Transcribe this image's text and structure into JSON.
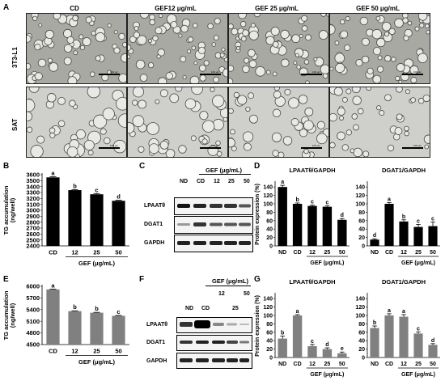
{
  "panels": {
    "A": "A",
    "B": "B",
    "C": "C",
    "D": "D",
    "E": "E",
    "F": "F",
    "G": "G"
  },
  "micrographs": {
    "columns": [
      "CD",
      "GEF12 μg/mL",
      "GEF 25 μg/mL",
      "GEF 50 μg/mL"
    ],
    "rows": [
      "3T3-L1",
      "SAT"
    ],
    "scale_label": "100 μm"
  },
  "blots": {
    "C": {
      "group_label": "GEF (μg/mL)",
      "lanes": [
        "ND",
        "CD",
        "12",
        "25",
        "50"
      ],
      "proteins": [
        "LPAATθ",
        "DGAT1",
        "GAPDH"
      ]
    },
    "F": {
      "group_label": "GEF (μg/mL)",
      "lanes": [
        "ND",
        "CD",
        "12",
        "25",
        "50"
      ],
      "proteins": [
        "LPAATθ",
        "DGAT1",
        "GAPDH"
      ]
    }
  },
  "chart_data": [
    {
      "panel": "B",
      "type": "bar",
      "title": "",
      "ylabel": "TG accumulation (ng/well)",
      "categories": [
        "CD",
        "12",
        "25",
        "50"
      ],
      "values": [
        3555,
        3340,
        3270,
        3160
      ],
      "errors": [
        12,
        10,
        12,
        10
      ],
      "letters": [
        "a",
        "b",
        "c",
        "d"
      ],
      "ylim": [
        2400,
        3600
      ],
      "yticks": [
        2400,
        2500,
        2600,
        2700,
        2800,
        2900,
        3000,
        3100,
        3200,
        3300,
        3400,
        3500,
        3600
      ],
      "xgroup": "GEF (μg/mL)",
      "color": "#000000"
    },
    {
      "panel": "D",
      "type": "bar",
      "title": "LPAATθ/GAPDH",
      "ylabel": "Protein expression (%)",
      "categories": [
        "ND",
        "CD",
        "12",
        "25",
        "50"
      ],
      "values": [
        140,
        100,
        95,
        93,
        62
      ],
      "errors": [
        4,
        2,
        2,
        2,
        3
      ],
      "letters": [
        "a",
        "b",
        "c",
        "c",
        "d"
      ],
      "ylim": [
        0,
        150
      ],
      "yticks": [
        0,
        20,
        40,
        60,
        80,
        100,
        120,
        140
      ],
      "xgroup": "GEF (μg/mL)",
      "color": "#000000"
    },
    {
      "panel": "D",
      "type": "bar",
      "title": "DGAT1/GAPDH",
      "ylabel": "",
      "categories": [
        "ND",
        "CD",
        "12",
        "25",
        "50"
      ],
      "values": [
        15,
        100,
        58,
        45,
        47
      ],
      "errors": [
        2,
        3,
        4,
        6,
        10
      ],
      "letters": [
        "d",
        "a",
        "b",
        "c",
        "c"
      ],
      "ylim": [
        0,
        150
      ],
      "yticks": [
        0,
        20,
        40,
        60,
        80,
        100,
        120,
        140
      ],
      "xgroup": "GEF (μg/mL)",
      "color": "#000000"
    },
    {
      "panel": "E",
      "type": "bar",
      "title": "",
      "ylabel": "TG accumulation (ng/well)",
      "categories": [
        "CD",
        "12",
        "25",
        "50"
      ],
      "values": [
        5920,
        5360,
        5320,
        5240
      ],
      "errors": [
        10,
        10,
        10,
        10
      ],
      "letters": [
        "a",
        "b",
        "b",
        "c"
      ],
      "ylim": [
        4500,
        6000
      ],
      "yticks": [
        4500,
        4800,
        5100,
        5400,
        5700,
        6000
      ],
      "xgroup": "GEF (μg/mL)",
      "color": "#808080"
    },
    {
      "panel": "G",
      "type": "bar",
      "title": "LPAATθ/GAPDH",
      "ylabel": "Protein expression (%)",
      "categories": [
        "ND",
        "CD",
        "12",
        "25",
        "50"
      ],
      "values": [
        45,
        100,
        27,
        20,
        10
      ],
      "errors": [
        6,
        2,
        4,
        3,
        3
      ],
      "letters": [
        "b",
        "a",
        "c",
        "d",
        "e"
      ],
      "ylim": [
        0,
        150
      ],
      "yticks": [
        0,
        20,
        40,
        60,
        80,
        100,
        120,
        140
      ],
      "xgroup": "GEF (μg/mL)",
      "color": "#808080"
    },
    {
      "panel": "G",
      "type": "bar",
      "title": "DGAT1/GAPDH",
      "ylabel": "",
      "categories": [
        "ND",
        "CD",
        "12",
        "25",
        "50"
      ],
      "values": [
        70,
        100,
        97,
        57,
        30
      ],
      "errors": [
        5,
        4,
        5,
        4,
        3
      ],
      "letters": [
        "b",
        "a",
        "a",
        "c",
        "d"
      ],
      "ylim": [
        0,
        150
      ],
      "yticks": [
        0,
        20,
        40,
        60,
        80,
        100,
        120,
        140
      ],
      "xgroup": "GEF (μg/mL)",
      "color": "#808080"
    }
  ]
}
